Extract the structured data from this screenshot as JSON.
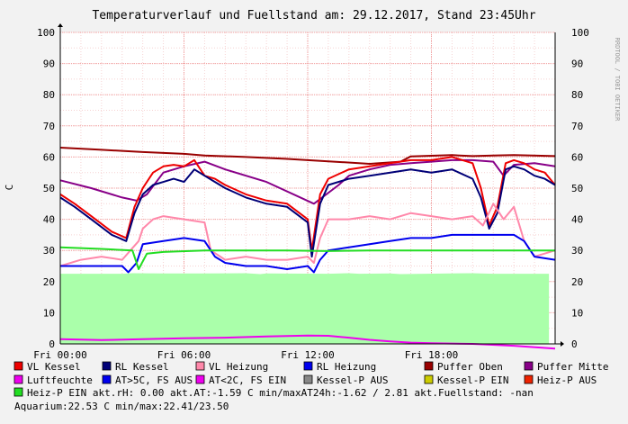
{
  "chart_data": {
    "type": "line",
    "title": "Temperaturverlauf und Fuellstand am: 29.12.2017, Stand 23:45Uhr",
    "ylabel": "C",
    "watermark": "RRDTOOL / TOBI OETIKER",
    "ylim": [
      0,
      100
    ],
    "xlim": [
      0,
      24
    ],
    "y_ticks": [
      "0",
      "10",
      "20",
      "30",
      "40",
      "50",
      "60",
      "70",
      "80",
      "90",
      "100"
    ],
    "x_ticks": [
      {
        "label": "Fri 00:00",
        "t": 0
      },
      {
        "label": "Fri 06:00",
        "t": 6
      },
      {
        "label": "Fri 12:00",
        "t": 12
      },
      {
        "label": "Fri 18:00",
        "t": 18
      }
    ],
    "colors": {
      "background": "#f2f2f2",
      "canvas": "#ffffff",
      "grid_major": "#f2a0a0",
      "grid_minor": "#f6d2d2",
      "axis": "#000000"
    },
    "series": [
      {
        "name": "Aquarium",
        "color": "#aaffaa",
        "area": true,
        "x": [
          0,
          1,
          3,
          3.5,
          5,
          7,
          9,
          9.7,
          10,
          13,
          14,
          14.5,
          16,
          16.5,
          20,
          21,
          23.7
        ],
        "y": [
          22.5,
          22.5,
          22.5,
          22.7,
          22.6,
          22.6,
          22.7,
          22.4,
          22.6,
          22.5,
          22.7,
          22.5,
          22.6,
          22.4,
          22.7,
          22.5,
          22.5
        ]
      },
      {
        "name": "Puffer Oben",
        "color": "#990000",
        "x": [
          0,
          2,
          4,
          6,
          7,
          9,
          11,
          13,
          15,
          16.5,
          17,
          18,
          19,
          20,
          21,
          22,
          24
        ],
        "y": [
          63,
          62.3,
          61.6,
          61,
          60.5,
          60,
          59.4,
          58.6,
          57.8,
          58.5,
          60.2,
          60.4,
          60.6,
          60.3,
          60.5,
          60.6,
          60.3
        ]
      },
      {
        "name": "Puffer Mitte",
        "color": "#880088",
        "x": [
          0,
          1.5,
          3,
          3.7,
          4.2,
          5,
          6,
          7,
          8,
          10,
          12.3,
          13.5,
          14,
          15,
          16,
          17,
          18,
          19,
          20,
          21,
          21.5,
          22,
          23,
          24
        ],
        "y": [
          52.5,
          50,
          47,
          46,
          48,
          55,
          57,
          58.5,
          56,
          52,
          45,
          51,
          54,
          56,
          57.5,
          58,
          58.5,
          59,
          59,
          58.5,
          54,
          57.5,
          58,
          57
        ]
      },
      {
        "name": "VL Kessel",
        "color": "#ee0000",
        "x": [
          0,
          0.7,
          1.5,
          2.5,
          3.2,
          3.6,
          4,
          4.5,
          5,
          5.5,
          6,
          6.5,
          7,
          7.5,
          8,
          9,
          10,
          11,
          12,
          12.2,
          12.6,
          13,
          14,
          15,
          16,
          17,
          18,
          19,
          20,
          20.4,
          20.8,
          21.2,
          21.6,
          22,
          22.5,
          23,
          23.5,
          24
        ],
        "y": [
          48,
          45,
          41,
          36,
          34,
          44,
          50,
          55,
          57,
          57.5,
          57,
          59,
          54,
          53,
          51,
          48,
          46,
          45,
          40,
          30,
          48,
          53,
          56,
          57,
          58,
          59,
          59,
          60,
          58,
          50,
          38,
          44,
          58,
          59,
          58,
          56,
          55,
          51
        ]
      },
      {
        "name": "RL Kessel",
        "color": "#000077",
        "x": [
          0,
          0.7,
          1.5,
          2.5,
          3.2,
          3.6,
          4,
          4.5,
          5,
          5.5,
          6,
          6.5,
          7,
          7.5,
          8,
          9,
          10,
          11,
          12,
          12.2,
          12.6,
          13,
          14,
          15,
          16,
          17,
          18,
          19,
          20,
          20.4,
          20.8,
          21.2,
          21.6,
          22,
          22.5,
          23,
          23.5,
          24
        ],
        "y": [
          47,
          44,
          40,
          35,
          33,
          42,
          48,
          51,
          52,
          53,
          52,
          56,
          54,
          52,
          50,
          47,
          45,
          44,
          39,
          28,
          45,
          51,
          53,
          54,
          55,
          56,
          55,
          56,
          53,
          47,
          37,
          42,
          56,
          57,
          56,
          54,
          53,
          51
        ]
      },
      {
        "name": "VL Heizung",
        "color": "#ff88aa",
        "x": [
          0,
          1,
          2,
          3,
          3.4,
          3.8,
          4,
          4.5,
          5,
          6,
          7,
          7.3,
          8,
          9,
          10,
          11,
          12,
          12.3,
          12.6,
          13,
          14,
          15,
          16,
          17,
          18,
          19,
          20,
          20.5,
          21,
          21.5,
          22,
          22.5,
          23,
          24
        ],
        "y": [
          25,
          27,
          28,
          27,
          30,
          33,
          37,
          40,
          41,
          40,
          39,
          30,
          27,
          28,
          27,
          27,
          28,
          26,
          34,
          40,
          40,
          41,
          40,
          42,
          41,
          40,
          41,
          38,
          45,
          40,
          44,
          33,
          28,
          30
        ]
      },
      {
        "name": "RL Heizung",
        "color": "#0000ee",
        "x": [
          0,
          1,
          2,
          3,
          3.3,
          3.7,
          4,
          5,
          6,
          7,
          7.5,
          8,
          9,
          10,
          11,
          12,
          12.3,
          12.6,
          13,
          14,
          15,
          16,
          17,
          18,
          19,
          20,
          21,
          22,
          22.5,
          23,
          24
        ],
        "y": [
          25,
          25,
          25,
          25,
          23,
          26,
          32,
          33,
          34,
          33,
          28,
          26,
          25,
          25,
          24,
          25,
          23,
          27,
          30,
          31,
          32,
          33,
          34,
          34,
          35,
          35,
          35,
          35,
          33,
          28,
          27
        ]
      },
      {
        "name": "Heiz-P EIN",
        "color": "#22dd22",
        "x": [
          0,
          2,
          3.5,
          3.8,
          4.2,
          5,
          7,
          9,
          11,
          13,
          15,
          17,
          19,
          21,
          23,
          24
        ],
        "y": [
          31,
          30.5,
          30,
          24,
          29,
          29.5,
          30,
          30,
          30,
          29.8,
          30,
          30,
          30,
          30,
          30,
          30
        ]
      },
      {
        "name": "Luftfeuchte",
        "color": "#ee00ee",
        "x": [
          0,
          2,
          4,
          6,
          8,
          10,
          12,
          13,
          14,
          15,
          16,
          17,
          18,
          20,
          22,
          24
        ],
        "y": [
          1.5,
          1.2,
          1.5,
          1.8,
          2.0,
          2.4,
          2.7,
          2.6,
          2.0,
          1.3,
          0.8,
          0.4,
          0.2,
          0,
          -0.6,
          -1.5
        ]
      }
    ],
    "legend_rows": [
      [
        {
          "label": "VL Kessel",
          "color": "#ee0000"
        },
        {
          "label": "RL Kessel",
          "color": "#000077"
        },
        {
          "label": "VL Heizung",
          "color": "#ff88aa"
        },
        {
          "label": "RL Heizung",
          "color": "#0000ee"
        },
        {
          "label": "Puffer Oben",
          "color": "#990000"
        },
        {
          "label": "Puffer Mitte",
          "color": "#880088"
        }
      ],
      [
        {
          "label": "Luftfeuchte",
          "color": "#ee00ee"
        },
        {
          "label": "AT>5C, FS AUS",
          "color": "#0000ee"
        },
        {
          "label": "AT<2C, FS EIN",
          "color": "#ee00ee"
        },
        {
          "label": "Kessel-P AUS",
          "color": "#888888"
        },
        {
          "label": "Kessel-P EIN",
          "color": "#cccc00"
        },
        {
          "label": "Heiz-P AUS",
          "color": "#ee2200"
        }
      ],
      [
        {
          "label": "Heiz-P EIN   akt.rH: 0.00   akt.AT:-1.59 C   min/maxAT24h:-1.62 / 2.81   akt.Fuellstand: -nan",
          "color": "#22dd22"
        }
      ],
      [
        {
          "label": "Aquarium:22.53 C  min/max:22.41/23.50",
          "color": null
        }
      ]
    ]
  }
}
